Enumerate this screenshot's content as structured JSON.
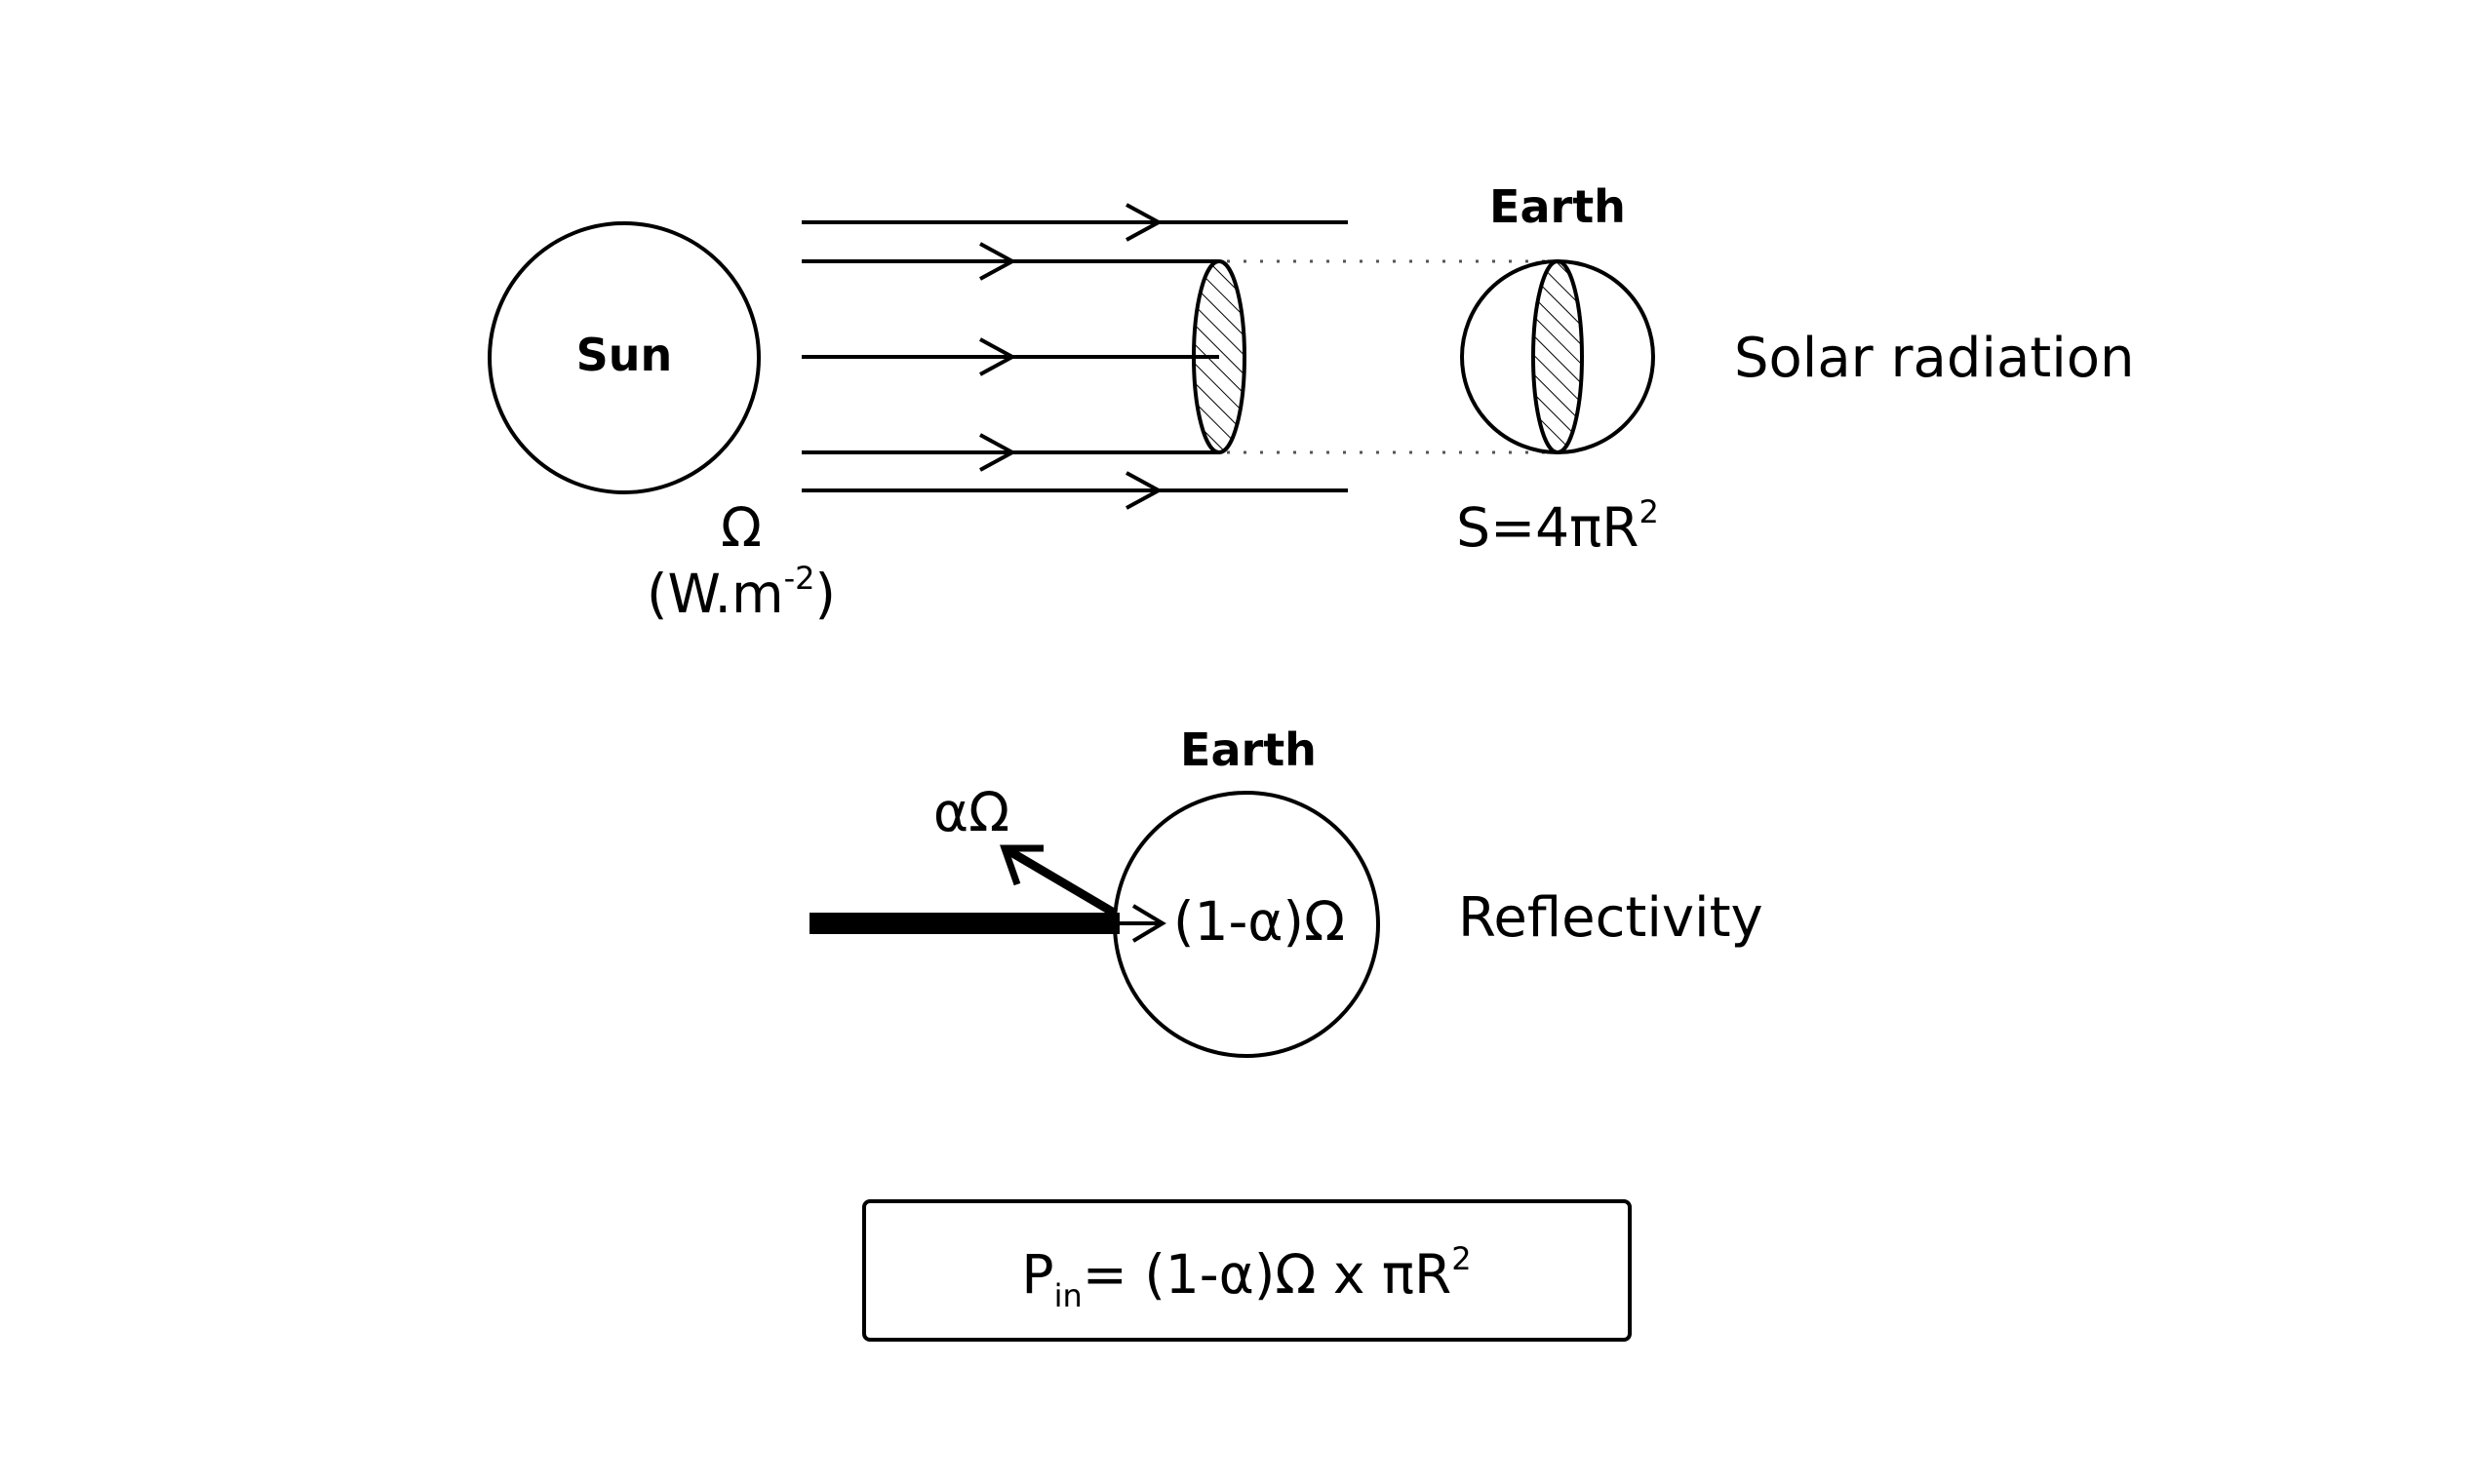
{
  "colors": {
    "stroke": "#000000",
    "background": "#ffffff",
    "dotted": "#555555"
  },
  "top": {
    "sun_label": "Sun",
    "earth_label": "Earth",
    "omega": "Ω",
    "unit_open": "(W.m",
    "unit_exp": "-2",
    "unit_close": ")",
    "surface_base": "S=4πR",
    "surface_exp": "2",
    "title": "Solar radiation"
  },
  "middle": {
    "earth_label": "Earth",
    "reflected": "αΩ",
    "absorbed": "(1-α)Ω",
    "title": "Reflectivity"
  },
  "formula": {
    "p": "P",
    "p_sub": "in",
    "body": "= (1-α)Ω  x  πR",
    "exp": "2"
  }
}
